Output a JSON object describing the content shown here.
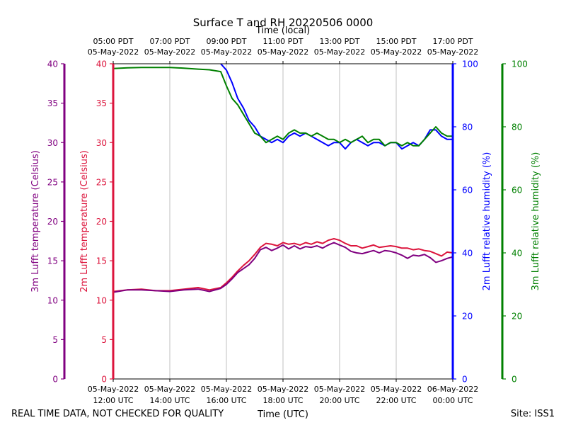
{
  "chart_data": {
    "type": "line",
    "title": "Surface T and RH 20220506 0000",
    "top_axis_label": "Time (local)",
    "bottom_axis_label": "Time (UTC)",
    "footer_left": "REAL TIME DATA, NOT CHECKED FOR QUALITY",
    "footer_right": "Site: ISS1",
    "x_range_hours_utc": [
      12,
      24
    ],
    "x_ticks": [
      {
        "hour": 12,
        "utc_date": "05-May-2022",
        "utc_time": "12:00 UTC",
        "local_time": "05:00 PDT",
        "local_date": "05-May-2022"
      },
      {
        "hour": 14,
        "utc_date": "05-May-2022",
        "utc_time": "14:00 UTC",
        "local_time": "07:00 PDT",
        "local_date": "05-May-2022"
      },
      {
        "hour": 16,
        "utc_date": "05-May-2022",
        "utc_time": "16:00 UTC",
        "local_time": "09:00 PDT",
        "local_date": "05-May-2022"
      },
      {
        "hour": 18,
        "utc_date": "05-May-2022",
        "utc_time": "18:00 UTC",
        "local_time": "11:00 PDT",
        "local_date": "05-May-2022"
      },
      {
        "hour": 20,
        "utc_date": "05-May-2022",
        "utc_time": "20:00 UTC",
        "local_time": "13:00 PDT",
        "local_date": "05-May-2022"
      },
      {
        "hour": 22,
        "utc_date": "05-May-2022",
        "utc_time": "22:00 UTC",
        "local_time": "15:00 PDT",
        "local_date": "05-May-2022"
      },
      {
        "hour": 24,
        "utc_date": "06-May-2022",
        "utc_time": "00:00 UTC",
        "local_time": "17:00 PDT",
        "local_date": "05-May-2022"
      }
    ],
    "axes": {
      "t3m": {
        "label": "3m Lufft temperature (Celsius)",
        "range": [
          0,
          40
        ],
        "ticks": [
          "0",
          "5",
          "10",
          "15",
          "20",
          "25",
          "30",
          "35",
          "40"
        ],
        "color": "#800080"
      },
      "t2m": {
        "label": "2m Lufft temperature (Celsius)",
        "range": [
          0,
          40
        ],
        "ticks": [
          "0",
          "5",
          "10",
          "15",
          "20",
          "25",
          "30",
          "35",
          "40"
        ],
        "color": "#dc143c"
      },
      "rh2m": {
        "label": "2m Lufft relative humidity (%)",
        "range": [
          0,
          100
        ],
        "ticks": [
          "0",
          "20",
          "40",
          "60",
          "80",
          "100"
        ],
        "color": "#0000ff"
      },
      "rh3m": {
        "label": "3m Lufft relative humidity (%)",
        "range": [
          0,
          100
        ],
        "ticks": [
          "0",
          "20",
          "40",
          "60",
          "80",
          "100"
        ],
        "color": "#008000"
      }
    },
    "series": [
      {
        "name": "2m Lufft relative humidity (%)",
        "axis": "rh2m",
        "color": "#0000ff",
        "x": [
          15.8,
          16.0,
          16.2,
          16.4,
          16.6,
          16.8,
          17.0,
          17.2,
          17.4,
          17.6,
          17.8,
          18.0,
          18.2,
          18.4,
          18.6,
          18.8,
          19.0,
          19.2,
          19.4,
          19.6,
          19.8,
          20.0,
          20.2,
          20.4,
          20.6,
          20.8,
          21.0,
          21.2,
          21.4,
          21.6,
          21.8,
          22.0,
          22.2,
          22.4,
          22.6,
          22.8,
          23.0,
          23.2,
          23.4,
          23.6,
          23.8,
          24.0
        ],
        "values": [
          100,
          98,
          94,
          89,
          86,
          82,
          80,
          77,
          76,
          75,
          76,
          75,
          77,
          78,
          77,
          78,
          77,
          76,
          75,
          74,
          75,
          75,
          73,
          75,
          76,
          75,
          74,
          75,
          75,
          74,
          75,
          75,
          73,
          74,
          75,
          74,
          76,
          79,
          79,
          77,
          76,
          76
        ]
      },
      {
        "name": "3m Lufft relative humidity (%)",
        "axis": "rh3m",
        "color": "#008000",
        "x": [
          12.0,
          12.5,
          13.0,
          13.5,
          14.0,
          14.5,
          15.0,
          15.4,
          15.8,
          16.0,
          16.2,
          16.4,
          16.6,
          16.8,
          17.0,
          17.2,
          17.4,
          17.6,
          17.8,
          18.0,
          18.2,
          18.4,
          18.6,
          18.8,
          19.0,
          19.2,
          19.4,
          19.6,
          19.8,
          20.0,
          20.2,
          20.4,
          20.6,
          20.8,
          21.0,
          21.2,
          21.4,
          21.6,
          21.8,
          22.0,
          22.2,
          22.4,
          22.6,
          22.8,
          23.0,
          23.2,
          23.4,
          23.6,
          23.8,
          24.0
        ],
        "values": [
          98.5,
          98.7,
          98.8,
          98.8,
          98.8,
          98.6,
          98.3,
          98.1,
          97.5,
          93,
          89,
          87,
          84,
          81,
          78,
          77,
          75,
          76,
          77,
          76,
          78,
          79,
          78,
          78,
          77,
          78,
          77,
          76,
          76,
          75,
          76,
          75,
          76,
          77,
          75,
          76,
          76,
          74,
          75,
          75,
          74,
          75,
          74,
          74,
          76,
          78,
          80,
          78,
          77,
          77
        ]
      },
      {
        "name": "2m Lufft temperature (Celsius)",
        "axis": "t2m",
        "color": "#dc143c",
        "x": [
          12.0,
          12.5,
          13.0,
          13.5,
          14.0,
          14.5,
          15.0,
          15.4,
          15.8,
          16.0,
          16.2,
          16.4,
          16.6,
          16.8,
          17.0,
          17.2,
          17.4,
          17.6,
          17.8,
          18.0,
          18.2,
          18.4,
          18.6,
          18.8,
          19.0,
          19.2,
          19.4,
          19.6,
          19.8,
          20.0,
          20.2,
          20.4,
          20.6,
          20.8,
          21.0,
          21.2,
          21.4,
          21.6,
          21.8,
          22.0,
          22.2,
          22.4,
          22.6,
          22.8,
          23.0,
          23.2,
          23.4,
          23.6,
          23.8,
          24.0
        ],
        "values": [
          11.1,
          11.3,
          11.4,
          11.2,
          11.2,
          11.4,
          11.6,
          11.3,
          11.6,
          12.2,
          12.9,
          13.7,
          14.4,
          15.0,
          15.8,
          16.7,
          17.2,
          17.1,
          16.9,
          17.3,
          17.1,
          17.2,
          17.0,
          17.3,
          17.1,
          17.4,
          17.2,
          17.6,
          17.8,
          17.6,
          17.2,
          16.9,
          16.9,
          16.6,
          16.8,
          17.0,
          16.7,
          16.8,
          16.9,
          16.8,
          16.6,
          16.6,
          16.4,
          16.5,
          16.3,
          16.2,
          15.9,
          15.6,
          16.1,
          16.0
        ]
      },
      {
        "name": "3m Lufft temperature (Celsius)",
        "axis": "t3m",
        "color": "#800080",
        "x": [
          12.0,
          12.5,
          13.0,
          13.5,
          14.0,
          14.5,
          15.0,
          15.4,
          15.8,
          16.0,
          16.2,
          16.4,
          16.6,
          16.8,
          17.0,
          17.2,
          17.4,
          17.6,
          17.8,
          18.0,
          18.2,
          18.4,
          18.6,
          18.8,
          19.0,
          19.2,
          19.4,
          19.6,
          19.8,
          20.0,
          20.2,
          20.4,
          20.6,
          20.8,
          21.0,
          21.2,
          21.4,
          21.6,
          21.8,
          22.0,
          22.2,
          22.4,
          22.6,
          22.8,
          23.0,
          23.2,
          23.4,
          23.6,
          23.8,
          24.0
        ],
        "values": [
          11.0,
          11.3,
          11.3,
          11.2,
          11.1,
          11.3,
          11.4,
          11.1,
          11.5,
          12.0,
          12.7,
          13.5,
          14.0,
          14.5,
          15.3,
          16.4,
          16.7,
          16.3,
          16.6,
          17.0,
          16.5,
          16.9,
          16.5,
          16.8,
          16.7,
          16.9,
          16.6,
          17.0,
          17.3,
          17.0,
          16.7,
          16.2,
          16.0,
          15.9,
          16.1,
          16.3,
          16.0,
          16.3,
          16.2,
          16.0,
          15.7,
          15.3,
          15.7,
          15.6,
          15.8,
          15.4,
          14.8,
          15.0,
          15.3,
          15.5
        ]
      }
    ]
  }
}
